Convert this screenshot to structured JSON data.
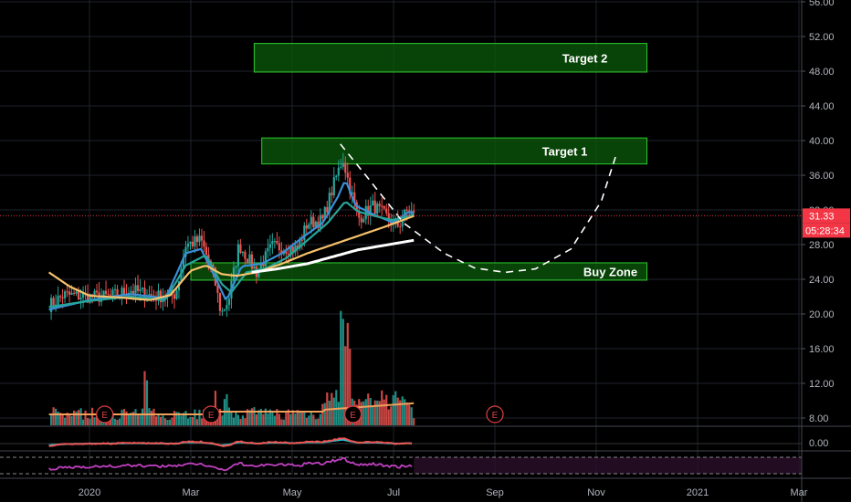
{
  "chart_data": {
    "type": "candlestick",
    "price_axis": {
      "ticks": [
        "56.00",
        "52.00",
        "48.00",
        "44.00",
        "40.00",
        "36.00",
        "32.00",
        "28.00",
        "24.00",
        "20.00",
        "16.00",
        "12.00",
        "8.00"
      ],
      "tick_values": [
        56,
        52,
        48,
        44,
        40,
        36,
        32,
        28,
        24,
        20,
        16,
        12,
        8
      ],
      "ylim": [
        7,
        56
      ]
    },
    "time_axis": {
      "ticks": [
        "2020",
        "Mar",
        "May",
        "Jul",
        "Sep",
        "Nov",
        "2021",
        "Mar"
      ],
      "tick_months": [
        0,
        2,
        4,
        6,
        8,
        10,
        12,
        14
      ],
      "xlim_months": [
        -0.8,
        14
      ]
    },
    "oscillator_axis": {
      "ticks": [
        "0.00"
      ]
    },
    "last_price": {
      "value": 31.33,
      "label": "31.33",
      "countdown": "05:28:34",
      "color": "#f23645"
    },
    "zones": [
      {
        "label": "Target 2",
        "low": 47.9,
        "high": 51.2,
        "from_month": 3.25,
        "to_month": 11.0
      },
      {
        "label": "Target 1",
        "low": 37.3,
        "high": 40.3,
        "from_month": 3.4,
        "to_month": 11.0
      },
      {
        "label": "Buy Zone",
        "low": 23.9,
        "high": 25.9,
        "from_month": 2.0,
        "to_month": 11.0
      }
    ],
    "projection": {
      "style": "dashed",
      "points": [
        [
          4.95,
          39.6
        ],
        [
          5.45,
          36.0
        ],
        [
          6.2,
          30.5
        ],
        [
          7.0,
          27.0
        ],
        [
          7.6,
          25.3
        ],
        [
          8.2,
          24.8
        ],
        [
          8.8,
          25.2
        ],
        [
          9.5,
          27.5
        ],
        [
          10.1,
          33.0
        ],
        [
          10.4,
          38.5
        ]
      ]
    },
    "earnings_markers": [
      {
        "label": "E",
        "month": 0.3
      },
      {
        "label": "E",
        "month": 2.4
      },
      {
        "label": "E",
        "month": 5.2
      },
      {
        "label": "E",
        "month": 8.0
      }
    ],
    "anchor_points": {
      "close": [
        [
          -0.8,
          21.0
        ],
        [
          -0.5,
          22.2
        ],
        [
          0.0,
          22.0
        ],
        [
          0.4,
          22.0
        ],
        [
          0.8,
          22.8
        ],
        [
          1.3,
          22.0
        ],
        [
          1.7,
          22.3
        ],
        [
          1.9,
          28.0
        ],
        [
          2.2,
          28.5
        ],
        [
          2.45,
          24.5
        ],
        [
          2.6,
          20.0
        ],
        [
          2.75,
          21.8
        ],
        [
          2.95,
          28.0
        ],
        [
          3.3,
          24.8
        ],
        [
          3.6,
          27.8
        ],
        [
          4.1,
          27.5
        ],
        [
          4.3,
          30.5
        ],
        [
          4.6,
          30.8
        ],
        [
          4.85,
          35.5
        ],
        [
          5.0,
          38.0
        ],
        [
          5.1,
          35.5
        ],
        [
          5.3,
          31.0
        ],
        [
          5.6,
          32.5
        ],
        [
          5.9,
          31.0
        ],
        [
          6.1,
          30.2
        ],
        [
          6.3,
          32.2
        ],
        [
          6.4,
          31.33
        ]
      ],
      "ema_fast": [
        [
          -0.8,
          20.5
        ],
        [
          0.0,
          21.6
        ],
        [
          0.8,
          22.3
        ],
        [
          1.5,
          21.8
        ],
        [
          1.9,
          27.0
        ],
        [
          2.2,
          27.5
        ],
        [
          2.5,
          24.0
        ],
        [
          2.7,
          21.5
        ],
        [
          3.0,
          25.5
        ],
        [
          3.4,
          25.8
        ],
        [
          3.8,
          27.0
        ],
        [
          4.2,
          28.8
        ],
        [
          4.6,
          30.5
        ],
        [
          4.9,
          33.5
        ],
        [
          5.05,
          35.5
        ],
        [
          5.25,
          32.5
        ],
        [
          5.6,
          31.5
        ],
        [
          6.0,
          30.5
        ],
        [
          6.3,
          31.8
        ],
        [
          6.4,
          31.6
        ]
      ],
      "ema_mid": [
        [
          -0.8,
          20.8
        ],
        [
          0.0,
          21.5
        ],
        [
          0.8,
          22.0
        ],
        [
          1.5,
          21.6
        ],
        [
          1.9,
          25.6
        ],
        [
          2.3,
          26.8
        ],
        [
          2.6,
          23.5
        ],
        [
          2.8,
          22.5
        ],
        [
          3.1,
          24.8
        ],
        [
          3.5,
          25.3
        ],
        [
          3.9,
          26.5
        ],
        [
          4.3,
          28.5
        ],
        [
          4.7,
          30.5
        ],
        [
          5.05,
          33.0
        ],
        [
          5.3,
          31.8
        ],
        [
          5.7,
          31.2
        ],
        [
          6.0,
          30.8
        ],
        [
          6.4,
          31.5
        ]
      ],
      "ma_orange": [
        [
          -0.8,
          24.8
        ],
        [
          -0.4,
          23.2
        ],
        [
          0.0,
          22.1
        ],
        [
          0.6,
          21.9
        ],
        [
          1.2,
          21.6
        ],
        [
          1.6,
          22.2
        ],
        [
          2.0,
          25.0
        ],
        [
          2.3,
          25.6
        ],
        [
          2.6,
          24.6
        ],
        [
          2.9,
          24.4
        ],
        [
          3.3,
          24.8
        ],
        [
          3.8,
          25.8
        ],
        [
          4.3,
          27.0
        ],
        [
          4.8,
          28.0
        ],
        [
          5.3,
          29.0
        ],
        [
          5.8,
          30.0
        ],
        [
          6.4,
          31.3
        ]
      ],
      "ma_white": [
        [
          3.2,
          24.8
        ],
        [
          3.7,
          25.2
        ],
        [
          4.3,
          25.8
        ],
        [
          4.8,
          26.6
        ],
        [
          5.3,
          27.4
        ],
        [
          5.8,
          27.9
        ],
        [
          6.4,
          28.5
        ]
      ]
    },
    "series": [
      {
        "name": "",
        "kind": "ema_fast",
        "color": "#3a8fd8"
      },
      {
        "name": "",
        "kind": "ema_mid",
        "color": "#26a69a"
      },
      {
        "name": "",
        "kind": "ma_orange",
        "color": "#f6c26b"
      },
      {
        "name": "",
        "kind": "ma_white",
        "color": "#ffffff"
      },
      {
        "name": "",
        "kind": "volume_ma",
        "color": "#f0a05a"
      },
      {
        "name": "",
        "kind": "macd",
        "color": "#ef5350"
      },
      {
        "name": "",
        "kind": "signal",
        "color": "#26c6da"
      },
      {
        "name": "",
        "kind": "rsi",
        "color": "#c040c0"
      }
    ],
    "colors": {
      "up": "#26a69a",
      "down": "#ef5350",
      "zone_fill": "#0b5a0b",
      "zone_border": "#2ecc2e",
      "grid": "#1e222d",
      "background": "#000000"
    }
  }
}
